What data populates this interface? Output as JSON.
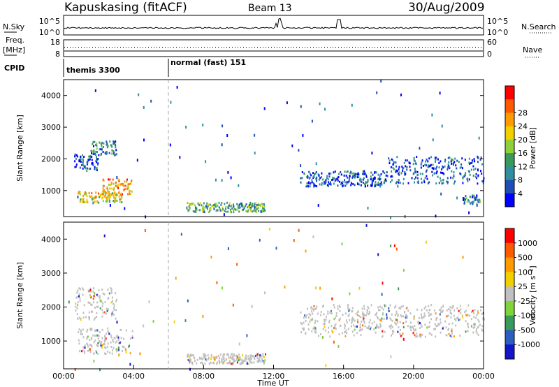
{
  "header": {
    "radar": "Kapuskasing (fitACF)",
    "beam": "Beam 13",
    "date": "30/Aug/2009"
  },
  "top_panels": {
    "nsky_label": "N.Sky",
    "nsearch_label": "N.Search",
    "nsky_ticks": [
      "10^5",
      "10^0"
    ],
    "nsearch_ticks": [
      "10^5",
      "10^0"
    ],
    "freq_label_1": "Freq.",
    "freq_label_2": "[MHz]",
    "freq_ticks": [
      "18",
      "8"
    ],
    "nave_label": "Nave",
    "nave_ticks": [
      "60",
      "0"
    ],
    "cpid_label": "CPID",
    "cpid_segments": [
      {
        "label": "themis 3300",
        "start_hour": 0
      },
      {
        "label": "normal (fast) 151",
        "start_hour": 6
      }
    ]
  },
  "colors": {
    "power": [
      "#0000ff",
      "#1f4fb4",
      "#2f8fa0",
      "#3a9a5a",
      "#8ecf3a",
      "#f2d000",
      "#ff9a00",
      "#ff5a00",
      "#ff0000"
    ],
    "velocity": [
      "#1414c8",
      "#2a5fbf",
      "#3a9a5a",
      "#7fd43a",
      "#c0c0c0",
      "#f2d000",
      "#ff9a00",
      "#ff5a00",
      "#ff0000"
    ]
  },
  "chart_data": [
    {
      "type": "heatmap",
      "name": "power",
      "ylabel": "Slant Range [km]",
      "ylim": [
        180,
        4500
      ],
      "xlim": [
        0,
        24
      ],
      "yticks": [
        "1000",
        "2000",
        "3000",
        "4000"
      ],
      "colorbar_label": "Power [dB]",
      "colorbar_ticks": [
        "4",
        "8",
        "12",
        "16",
        "20",
        "24",
        "28"
      ],
      "regions": [
        {
          "t0": 0.6,
          "t1": 2.0,
          "r0": 1650,
          "r1": 2150,
          "level": 1
        },
        {
          "t0": 1.5,
          "t1": 3.0,
          "r0": 2150,
          "r1": 2600,
          "level": 2
        },
        {
          "t0": 0.8,
          "t1": 3.3,
          "r0": 650,
          "r1": 1000,
          "level": 5
        },
        {
          "t0": 2.2,
          "t1": 3.9,
          "r0": 900,
          "r1": 1400,
          "level": 6
        },
        {
          "t0": 7.0,
          "t1": 11.5,
          "r0": 350,
          "r1": 650,
          "level": 3
        },
        {
          "t0": 13.5,
          "t1": 18.5,
          "r0": 1150,
          "r1": 1650,
          "level": 1
        },
        {
          "t0": 18.5,
          "t1": 24.0,
          "r0": 1250,
          "r1": 2100,
          "level": 1
        },
        {
          "t0": 22.8,
          "t1": 23.8,
          "r0": 600,
          "r1": 900,
          "level": 2
        }
      ]
    },
    {
      "type": "heatmap",
      "name": "velocity",
      "xlabel": "Time UT",
      "ylabel": "Slant Range [km]",
      "ylim": [
        180,
        4500
      ],
      "xlim": [
        0,
        24
      ],
      "yticks": [
        "1000",
        "2000",
        "3000",
        "4000"
      ],
      "xticks": [
        "00:00",
        "04:00",
        "08:00",
        "12:00",
        "16:00",
        "20:00",
        "00:00"
      ],
      "colorbar_label": "Velocity [m s⁻¹]",
      "colorbar_ticks": [
        "1000",
        "500",
        "100",
        "25",
        "-25",
        "-100",
        "-500",
        "-1000"
      ],
      "regions": [
        {
          "t0": 0.6,
          "t1": 3.0,
          "r0": 1650,
          "r1": 2600,
          "level": 4
        },
        {
          "t0": 0.8,
          "t1": 3.9,
          "r0": 650,
          "r1": 1400,
          "level": 4
        },
        {
          "t0": 7.0,
          "t1": 11.5,
          "r0": 350,
          "r1": 650,
          "level": 4
        },
        {
          "t0": 13.5,
          "t1": 24.0,
          "r0": 1150,
          "r1": 2100,
          "level": 4
        }
      ]
    }
  ]
}
